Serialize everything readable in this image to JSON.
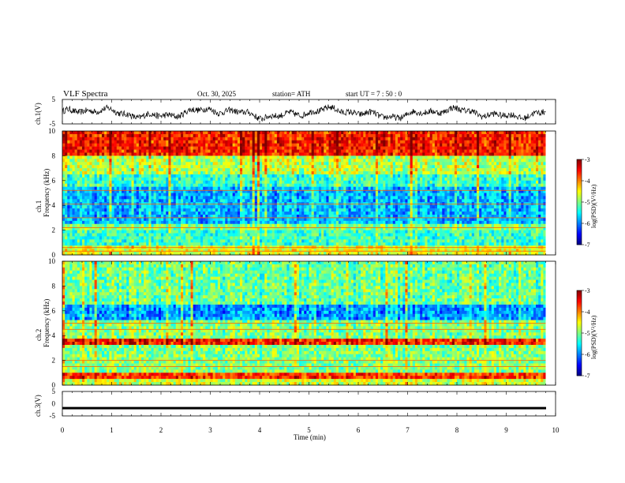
{
  "header": {
    "title": "VLF Spectra",
    "date": "Oct. 30, 2025",
    "station": "station= ATH",
    "start": "start  UT  =    7  : 50 : 0"
  },
  "chart_data": [
    {
      "type": "line",
      "title": "ch.1(V)",
      "ylabel": "ch.1(V)",
      "yticks": [
        "5",
        "-5"
      ],
      "ylim": [
        -5,
        5
      ],
      "xlim": [
        0,
        10
      ],
      "series": [
        {
          "name": "ch.1",
          "color": "#000000",
          "description": "noisy waveform roughly between -3 and 2 V"
        }
      ]
    },
    {
      "type": "heatmap",
      "channel": "ch.1",
      "ylabel": "Frequency  (kHz)",
      "ylabel_prefix": "ch.1",
      "ylim": [
        0,
        10
      ],
      "yticks": [
        "0",
        "2",
        "4",
        "6",
        "8",
        "10"
      ],
      "xlim": [
        0,
        9.8
      ],
      "colorbar": {
        "label": "log(PSD)(V²/Hz)",
        "ticks": [
          "-3",
          "-4",
          "-5",
          "-6",
          "-7"
        ],
        "range": [
          -7,
          -3
        ]
      },
      "bands": [
        {
          "from": 0,
          "to": 0.8,
          "level": -4.6
        },
        {
          "from": 0.8,
          "to": 2.0,
          "level": -5.3
        },
        {
          "from": 2.0,
          "to": 2.4,
          "level": -5.0
        },
        {
          "from": 2.4,
          "to": 5.5,
          "level": -5.8
        },
        {
          "from": 5.5,
          "to": 6.5,
          "level": -5.3
        },
        {
          "from": 6.5,
          "to": 8.0,
          "level": -4.8
        },
        {
          "from": 8.0,
          "to": 10.0,
          "level": -3.6
        }
      ],
      "lines_khz": [
        0.3,
        0.6,
        2.2,
        3.0,
        4.1,
        5.2
      ]
    },
    {
      "type": "heatmap",
      "channel": "ch.2",
      "ylabel": "Frequency  (kHz)",
      "ylabel_prefix": "ch.2",
      "ylim": [
        0,
        10
      ],
      "yticks": [
        "0",
        "2",
        "4",
        "6",
        "8",
        "10"
      ],
      "xlim": [
        0,
        9.8
      ],
      "colorbar": {
        "label": "log(PSD)(V²/Hz)",
        "ticks": [
          "-3",
          "-4",
          "-5",
          "-6",
          "-7"
        ],
        "range": [
          -7,
          -3
        ]
      },
      "bands": [
        {
          "from": 0,
          "to": 0.5,
          "level": -4.7
        },
        {
          "from": 0.5,
          "to": 1.0,
          "level": -3.7
        },
        {
          "from": 1.0,
          "to": 3.2,
          "level": -5.0
        },
        {
          "from": 3.2,
          "to": 3.7,
          "level": -3.6
        },
        {
          "from": 3.7,
          "to": 5.2,
          "level": -5.0
        },
        {
          "from": 5.2,
          "to": 6.5,
          "level": -5.9
        },
        {
          "from": 6.5,
          "to": 10.0,
          "level": -5.1
        }
      ],
      "lines_khz": [
        1.5,
        2.0,
        4.5,
        5.0
      ]
    },
    {
      "type": "line",
      "title": "ch.3(V)",
      "ylabel": "ch.3(V)",
      "yticks": [
        "5",
        "0",
        "-5"
      ],
      "ylim": [
        -5,
        5
      ],
      "xlim": [
        0,
        10
      ],
      "series": [
        {
          "name": "ch.3",
          "color": "#000000",
          "constant": -1.8
        }
      ]
    }
  ],
  "xaxis": {
    "label": "Time  (min)",
    "ticks": [
      "0",
      "1",
      "2",
      "3",
      "4",
      "5",
      "6",
      "7",
      "8",
      "9",
      "10"
    ],
    "range": [
      0,
      10
    ]
  }
}
